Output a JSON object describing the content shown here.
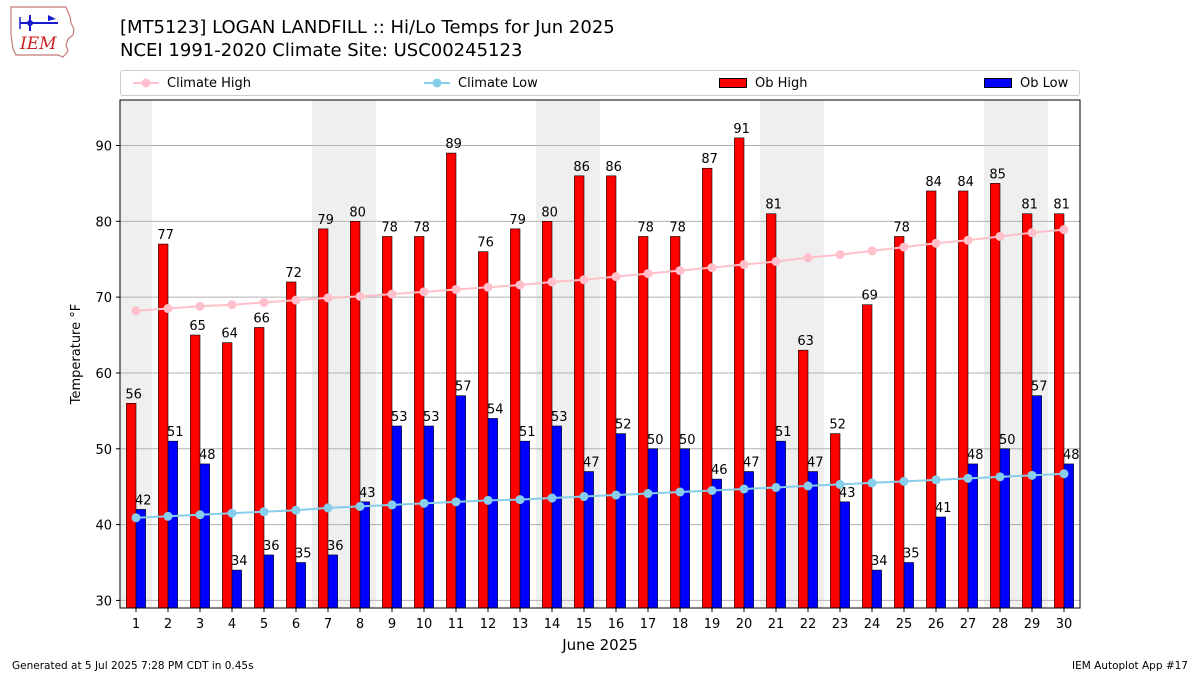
{
  "header": {
    "logo_text": "IEM",
    "title_line1": "[MT5123] LOGAN LANDFILL :: Hi/Lo Temps for Jun 2025",
    "title_line2": "NCEI 1991-2020 Climate Site: USC00245123"
  },
  "legend": {
    "placement": "top, horizontal",
    "items": [
      {
        "label": "Climate High",
        "kind": "line-marker",
        "color": "#ffc0cb"
      },
      {
        "label": "Climate Low",
        "kind": "line-marker",
        "color": "#87ceeb"
      },
      {
        "label": "Ob High",
        "kind": "bar",
        "color": "#ff0000"
      },
      {
        "label": "Ob Low",
        "kind": "bar",
        "color": "#0000ff"
      }
    ]
  },
  "footer": {
    "left": "Generated at 5 Jul 2025 7:28 PM CDT in 0.45s",
    "right": "IEM Autoplot App #17"
  },
  "chart_data": {
    "type": "bar",
    "xlabel": "June 2025",
    "ylabel": "Temperature $^\\circ$F",
    "ylabel_display": "Temperature °F",
    "ylim": [
      29,
      96
    ],
    "yticks": [
      30,
      40,
      50,
      60,
      70,
      80,
      90
    ],
    "grid": "horizontal",
    "weekend_shading_color": "#efefef",
    "shaded_days": [
      1,
      7,
      8,
      14,
      15,
      21,
      22,
      28,
      29
    ],
    "categories": [
      "1",
      "2",
      "3",
      "4",
      "5",
      "6",
      "7",
      "8",
      "9",
      "10",
      "11",
      "12",
      "13",
      "14",
      "15",
      "16",
      "17",
      "18",
      "19",
      "20",
      "21",
      "22",
      "23",
      "24",
      "25",
      "26",
      "27",
      "28",
      "29",
      "30"
    ],
    "series": [
      {
        "name": "Ob High",
        "kind": "bar",
        "color": "#ff0000",
        "values": [
          56,
          77,
          65,
          64,
          66,
          72,
          79,
          80,
          78,
          78,
          89,
          76,
          79,
          80,
          86,
          86,
          78,
          78,
          87,
          91,
          81,
          63,
          52,
          69,
          78,
          84,
          84,
          85,
          81,
          81
        ]
      },
      {
        "name": "Ob Low",
        "kind": "bar",
        "color": "#0000ff",
        "values": [
          42,
          51,
          48,
          34,
          36,
          35,
          36,
          43,
          53,
          53,
          57,
          54,
          51,
          53,
          47,
          52,
          50,
          50,
          46,
          47,
          51,
          47,
          43,
          34,
          35,
          41,
          48,
          50,
          57,
          48
        ]
      },
      {
        "name": "Climate High",
        "kind": "line",
        "color": "#ffc0cb",
        "values": [
          68.2,
          68.5,
          68.8,
          69.0,
          69.3,
          69.6,
          69.9,
          70.1,
          70.4,
          70.7,
          71.0,
          71.3,
          71.6,
          72.0,
          72.3,
          72.7,
          73.1,
          73.5,
          73.9,
          74.3,
          74.7,
          75.2,
          75.6,
          76.1,
          76.6,
          77.1,
          77.5,
          78.0,
          78.5,
          78.9
        ]
      },
      {
        "name": "Climate Low",
        "kind": "line",
        "color": "#87ceeb",
        "values": [
          40.9,
          41.1,
          41.3,
          41.5,
          41.7,
          41.9,
          42.2,
          42.4,
          42.6,
          42.8,
          43.0,
          43.2,
          43.3,
          43.5,
          43.7,
          43.9,
          44.1,
          44.3,
          44.5,
          44.7,
          44.9,
          45.1,
          45.3,
          45.5,
          45.7,
          45.9,
          46.1,
          46.3,
          46.5,
          46.7
        ]
      }
    ]
  }
}
